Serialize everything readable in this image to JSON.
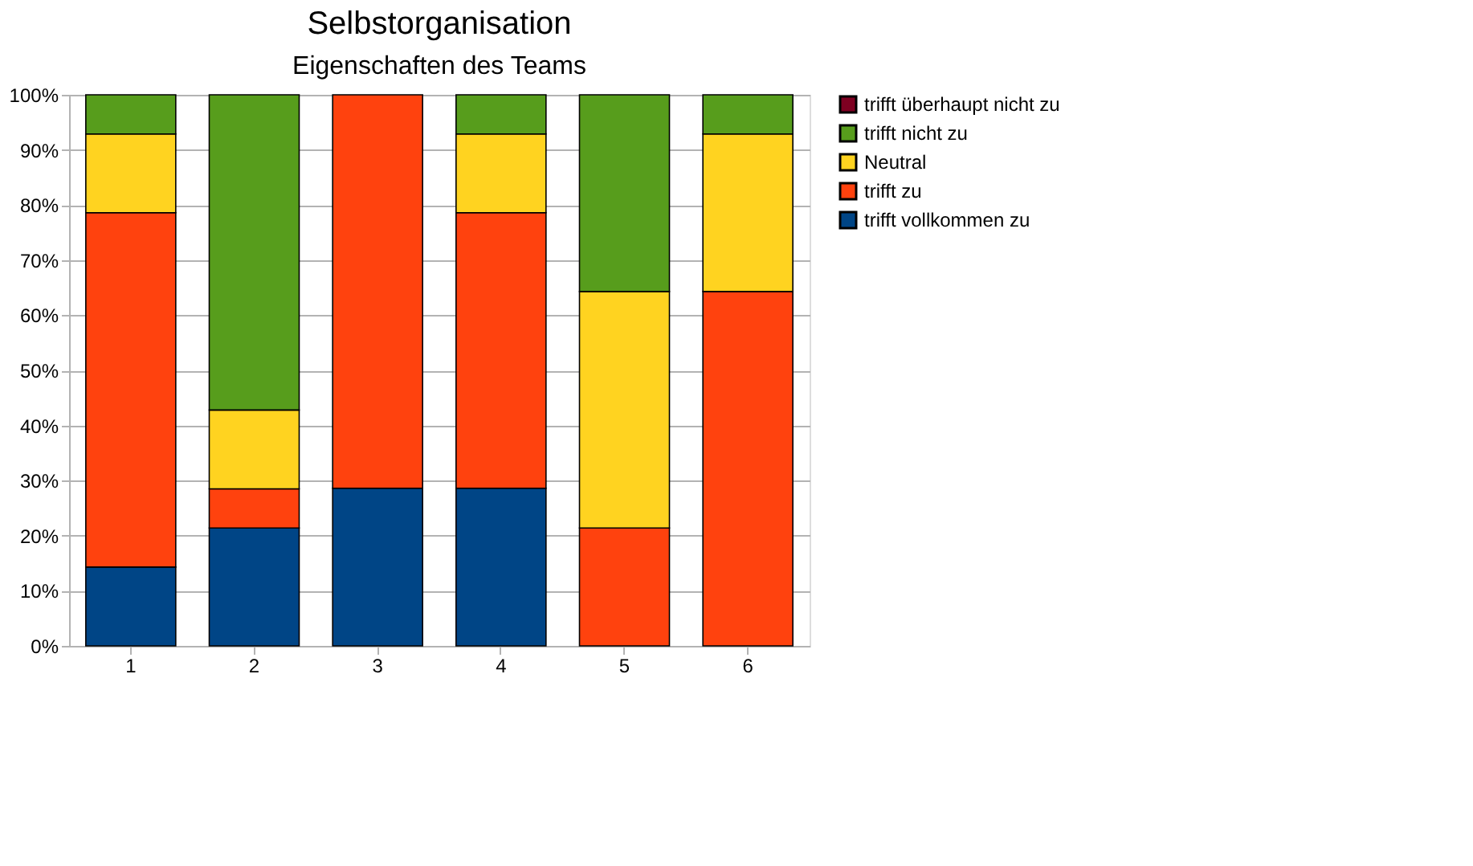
{
  "chart_data": {
    "type": "bar",
    "title": "Selbstorganisation",
    "subtitle": "Eigenschaften des Teams",
    "stacked": true,
    "categories": [
      "1",
      "2",
      "3",
      "4",
      "5",
      "6"
    ],
    "series": [
      {
        "name": "trifft vollkommen zu",
        "color": "#004586",
        "values": [
          14.3,
          21.4,
          28.6,
          28.6,
          0,
          0
        ]
      },
      {
        "name": "trifft zu",
        "color": "#ff420e",
        "values": [
          64.3,
          7.1,
          71.4,
          50,
          21.4,
          64.3
        ]
      },
      {
        "name": "Neutral",
        "color": "#ffd320",
        "values": [
          14.3,
          14.3,
          0,
          14.3,
          42.9,
          28.6
        ]
      },
      {
        "name": "trifft nicht zu",
        "color": "#579d1c",
        "values": [
          7.1,
          57.2,
          0,
          7.1,
          35.7,
          7.1
        ]
      },
      {
        "name": "trifft überhaupt nicht zu",
        "color": "#7e0021",
        "values": [
          0,
          0,
          0,
          0,
          0,
          0
        ]
      }
    ],
    "ylim": [
      0,
      100
    ],
    "yticks": [
      {
        "value": 0,
        "label": "0%"
      },
      {
        "value": 10,
        "label": "10%"
      },
      {
        "value": 20,
        "label": "20%"
      },
      {
        "value": 30,
        "label": "30%"
      },
      {
        "value": 40,
        "label": "40%"
      },
      {
        "value": 50,
        "label": "50%"
      },
      {
        "value": 60,
        "label": "60%"
      },
      {
        "value": 70,
        "label": "70%"
      },
      {
        "value": 80,
        "label": "80%"
      },
      {
        "value": 90,
        "label": "90%"
      },
      {
        "value": 100,
        "label": "100%"
      }
    ],
    "grid": "y",
    "legend": "right"
  }
}
